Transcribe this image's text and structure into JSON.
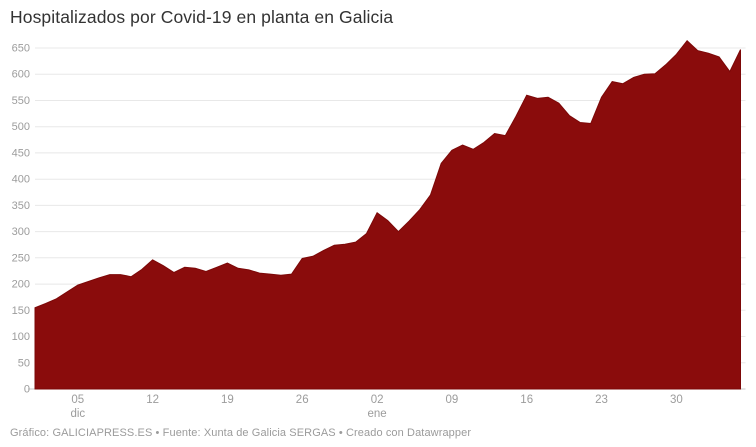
{
  "title": "Hospitalizados por Covid-19 en planta en Galicia",
  "footer": "Gráfico: GALICIAPRESS.ES • Fuente: Xunta de Galicia SERGAS • Creado con Datawrapper",
  "colors": {
    "area": "#8a0c0c",
    "area_stroke": "#7c0808",
    "title": "#333333",
    "axis_label": "#9c9c9c",
    "gridline": "#e8e8e8",
    "zero_line": "#c9c9c9",
    "footer": "#9b9b9b",
    "background": "#ffffff"
  },
  "chart_data": {
    "type": "area",
    "title": "Hospitalizados por Covid-19 en planta en Galicia",
    "xlabel": "",
    "ylabel": "",
    "ylim": [
      0,
      650
    ],
    "grid": true,
    "legend": "none",
    "y_ticks": [
      0,
      50,
      100,
      150,
      200,
      250,
      300,
      350,
      400,
      450,
      500,
      550,
      600,
      650
    ],
    "x_ticks": [
      {
        "index": 4,
        "label": "05",
        "sub": "dic"
      },
      {
        "index": 11,
        "label": "12",
        "sub": ""
      },
      {
        "index": 18,
        "label": "19",
        "sub": ""
      },
      {
        "index": 25,
        "label": "26",
        "sub": ""
      },
      {
        "index": 32,
        "label": "02",
        "sub": "ene"
      },
      {
        "index": 39,
        "label": "09",
        "sub": ""
      },
      {
        "index": 46,
        "label": "16",
        "sub": ""
      },
      {
        "index": 53,
        "label": "23",
        "sub": ""
      },
      {
        "index": 60,
        "label": "30",
        "sub": ""
      }
    ],
    "x": [
      "01 dic",
      "02 dic",
      "03 dic",
      "04 dic",
      "05 dic",
      "06 dic",
      "07 dic",
      "08 dic",
      "09 dic",
      "10 dic",
      "11 dic",
      "12 dic",
      "13 dic",
      "14 dic",
      "15 dic",
      "16 dic",
      "17 dic",
      "18 dic",
      "19 dic",
      "20 dic",
      "21 dic",
      "22 dic",
      "23 dic",
      "24 dic",
      "25 dic",
      "26 dic",
      "27 dic",
      "28 dic",
      "29 dic",
      "30 dic",
      "31 dic",
      "01 ene",
      "02 ene",
      "03 ene",
      "04 ene",
      "05 ene",
      "06 ene",
      "07 ene",
      "08 ene",
      "09 ene",
      "10 ene",
      "11 ene",
      "12 ene",
      "13 ene",
      "14 ene",
      "15 ene",
      "16 ene",
      "17 ene",
      "18 ene",
      "19 ene",
      "20 ene",
      "21 ene",
      "22 ene",
      "23 ene",
      "24 ene",
      "25 ene",
      "26 ene",
      "27 ene",
      "28 ene",
      "29 ene",
      "30 ene",
      "31 ene",
      "01 feb",
      "02 feb",
      "03 feb",
      "04 feb",
      "05 feb"
    ],
    "values": [
      155,
      163,
      172,
      185,
      198,
      205,
      212,
      218,
      218,
      214,
      228,
      246,
      235,
      222,
      232,
      230,
      224,
      232,
      240,
      230,
      227,
      221,
      219,
      217,
      219,
      249,
      253,
      264,
      274,
      276,
      280,
      296,
      336,
      321,
      300,
      320,
      342,
      370,
      430,
      455,
      465,
      457,
      470,
      487,
      483,
      520,
      560,
      554,
      556,
      545,
      521,
      508,
      506,
      556,
      586,
      582,
      594,
      600,
      601,
      618,
      638,
      664,
      645,
      640,
      633,
      605,
      647
    ]
  }
}
